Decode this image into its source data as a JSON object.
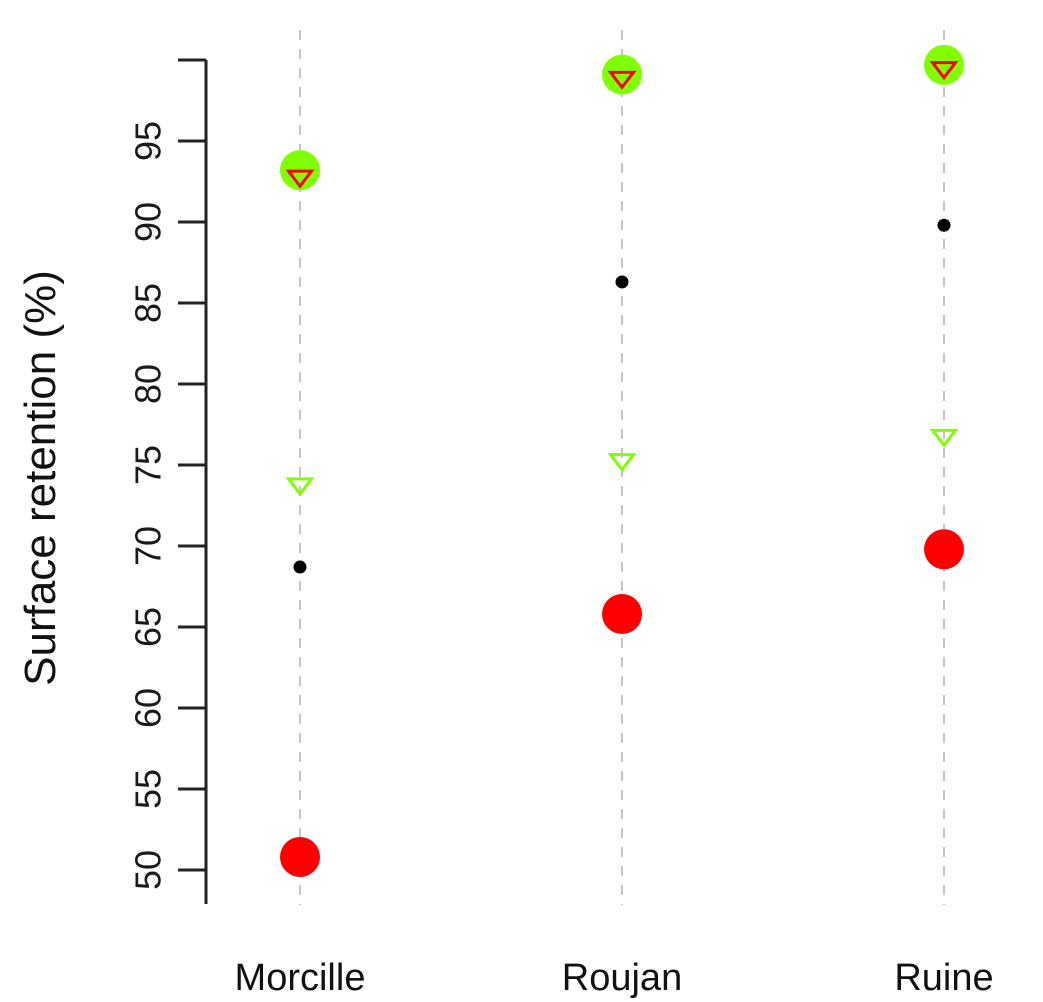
{
  "chart_data": {
    "type": "scatter",
    "title": "",
    "xlabel": "",
    "ylabel": "Surface retention (%)",
    "categories": [
      "Morcille",
      "Roujan",
      "Ruine"
    ],
    "ylim": [
      50,
      100
    ],
    "yticks": [
      50,
      55,
      60,
      65,
      70,
      75,
      80,
      85,
      90,
      95
    ],
    "grid": "vertical dashed lines at categories",
    "legend": "none",
    "series": [
      {
        "marker": "filled-circle-large",
        "color": "#ff0000",
        "values": [
          50.8,
          65.8,
          69.8
        ]
      },
      {
        "marker": "open-triangle-down",
        "color": "#7fff00",
        "values": [
          73.8,
          75.3,
          76.8
        ]
      },
      {
        "marker": "filled-dot-small",
        "color": "#000000",
        "values": [
          68.7,
          86.3,
          89.8
        ]
      },
      {
        "marker": "filled-circle-large",
        "color": "#7fff00",
        "values": [
          93.2,
          99.1,
          99.7
        ]
      },
      {
        "marker": "open-triangle-down",
        "color": "#ff0000",
        "values": [
          92.8,
          98.9,
          99.5
        ]
      }
    ]
  }
}
